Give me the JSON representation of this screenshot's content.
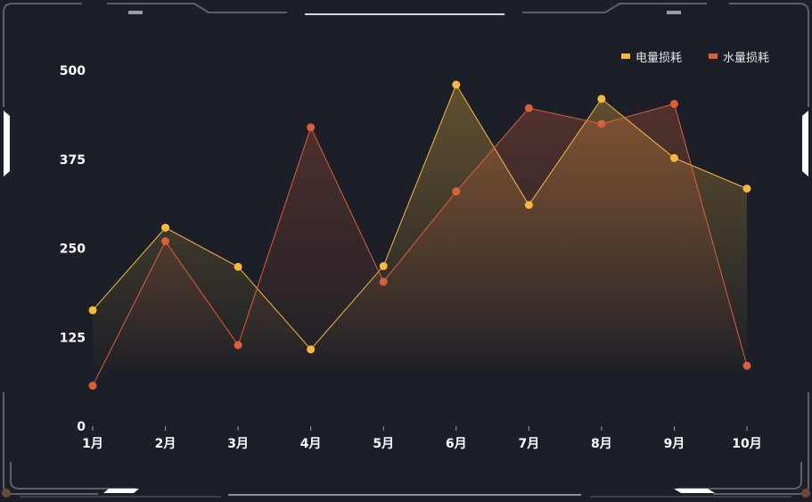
{
  "chart_data": {
    "type": "line",
    "categories": [
      "1月",
      "2月",
      "3月",
      "4月",
      "5月",
      "6月",
      "7月",
      "8月",
      "9月",
      "10月"
    ],
    "series": [
      {
        "name": "电量损耗",
        "values": [
          163,
          279,
          224,
          108,
          225,
          480,
          311,
          460,
          377,
          334
        ],
        "color": "#f5b942"
      },
      {
        "name": "水量损耗",
        "values": [
          57,
          260,
          114,
          420,
          203,
          330,
          447,
          425,
          453,
          85
        ],
        "color": "#d9603b"
      }
    ],
    "ylim": [
      0,
      500
    ],
    "yticks": [
      0,
      125,
      250,
      375,
      500
    ],
    "grid": false,
    "legend": "top-right",
    "area_fill": true
  }
}
